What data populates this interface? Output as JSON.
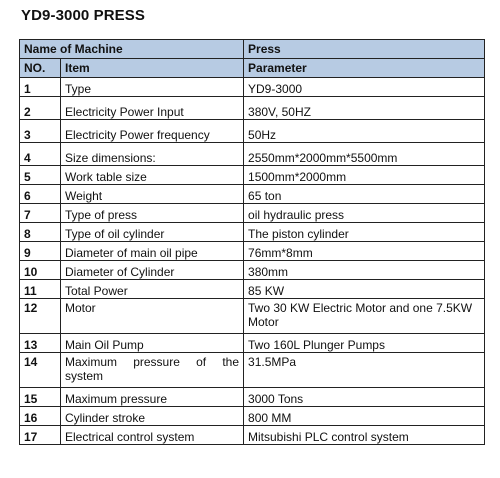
{
  "title": "YD9-3000 PRESS",
  "table": {
    "header1": {
      "name": "Name of Machine",
      "value": "Press"
    },
    "header2": {
      "no": "NO.",
      "item": "Item",
      "param": "Parameter"
    },
    "rows": [
      {
        "no": "1",
        "item": "Type",
        "param": "YD9-3000"
      },
      {
        "no": "2",
        "item": "Electricity Power Input",
        "param": "380V, 50HZ"
      },
      {
        "no": "3",
        "item": "Electricity Power frequency",
        "param": "50Hz"
      },
      {
        "no": "4",
        "item": "Size dimensions:",
        "param": "2550mm*2000mm*5500mm"
      },
      {
        "no": "5",
        "item": "Work table size",
        "param": "1500mm*2000mm"
      },
      {
        "no": "6",
        "item": "Weight",
        "param": "65 ton"
      },
      {
        "no": "7",
        "item": "Type of press",
        "param": "oil hydraulic press"
      },
      {
        "no": "8",
        "item": "Type of oil cylinder",
        "param": "The piston cylinder"
      },
      {
        "no": "9",
        "item": "Diameter of main oil pipe",
        "param": "76mm*8mm"
      },
      {
        "no": "10",
        "item": "Diameter of Cylinder",
        "param": "380mm"
      },
      {
        "no": "11",
        "item": "Total Power",
        "param": "85 KW"
      },
      {
        "no": "12",
        "item": "Motor",
        "param": "Two 30 KW Electric Motor and one 7.5KW Motor"
      },
      {
        "no": "13",
        "item": "Main Oil Pump",
        "param": "Two 160L Plunger Pumps"
      },
      {
        "no": "14",
        "item": "Maximum pressure of the system",
        "param": "31.5MPa"
      },
      {
        "no": "15",
        "item": "Maximum pressure",
        "param": "3000 Tons"
      },
      {
        "no": "16",
        "item": "Cylinder stroke",
        "param": "800 MM"
      },
      {
        "no": "17",
        "item": "Electrical control system",
        "param": "Mitsubishi PLC control system"
      }
    ]
  }
}
